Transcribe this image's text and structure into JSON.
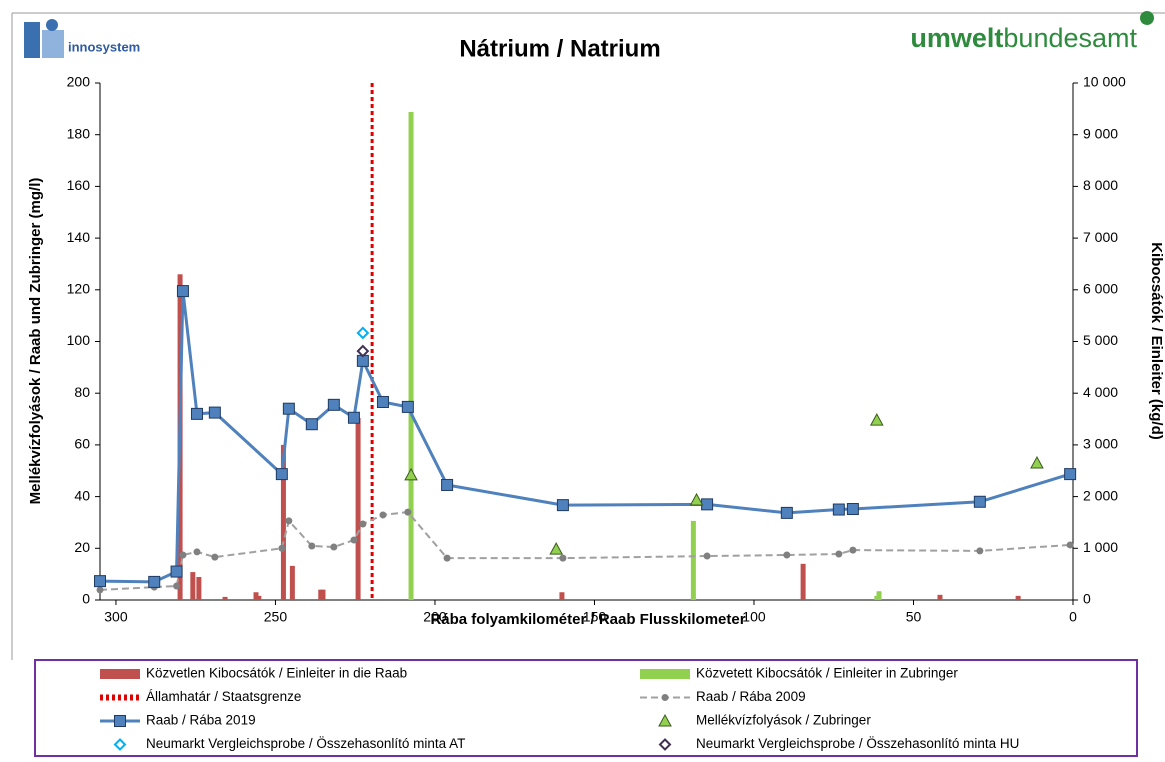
{
  "header": {
    "left_logo": "innosystem",
    "right_logo_bold": "umwelt",
    "right_logo_regular": "bundesamt"
  },
  "chart_data": {
    "type": "combo",
    "title": "Nátrium / Natrium",
    "x_label": "Rába folyamkilométer / Raab Flusskilometer",
    "y_label": "Mellékvízfolyások / Raab und Zubringer (mg/l)",
    "y2_label": "Kibocsátók / Einleiter (kg/d)",
    "xlim": [
      305,
      0
    ],
    "xticks": [
      300,
      250,
      200,
      150,
      100,
      50,
      0
    ],
    "ylim": [
      0,
      200
    ],
    "yticks": [
      0,
      20,
      40,
      60,
      80,
      100,
      120,
      140,
      160,
      180,
      200
    ],
    "y2lim": [
      0,
      10000
    ],
    "y2ticks": [
      0,
      {
        "value": 1000,
        "label": "1 000"
      },
      {
        "value": 2000,
        "label": "2 000"
      },
      {
        "value": 3000,
        "label": "3 000"
      },
      {
        "value": 4000,
        "label": "4 000"
      },
      {
        "value": 5000,
        "label": "5 000"
      },
      {
        "value": 6000,
        "label": "6 000"
      },
      {
        "value": 7000,
        "label": "7 000"
      },
      {
        "value": 8000,
        "label": "8 000"
      },
      {
        "value": 9000,
        "label": "9 000"
      },
      {
        "value": 10000,
        "label": "10 000"
      }
    ],
    "series": [
      {
        "name": "Közvetlen Kibocsátók / Einleiter in die Raab",
        "type": "bar",
        "axis": "y2",
        "color": "#c0504d",
        "x": [
          279.9,
          275.9,
          274,
          265.8,
          256.1,
          255.2,
          247.5,
          244.7,
          235.8,
          235.1,
          224.1,
          160.2,
          84.6,
          41.7,
          17.2
        ],
        "values": [
          6300,
          540,
          445,
          60,
          150,
          80,
          3000,
          660,
          200,
          200,
          3520,
          150,
          700,
          100,
          80
        ]
      },
      {
        "name": "Közvetett Kibocsátók / Einleiter in Zubringer",
        "type": "bar",
        "axis": "y2",
        "color": "#92d050",
        "x": [
          207.5,
          119,
          61.5,
          60.8
        ],
        "values": [
          9440,
          1530,
          80,
          170
        ]
      },
      {
        "name": "Államhatár / Staatsgrenze",
        "type": "vline",
        "color": "#e00000",
        "x": [
          219.7
        ]
      },
      {
        "name": "Raab / Rába 2009",
        "type": "line",
        "dashed": true,
        "marker": "circle",
        "color": "#a0a0a0",
        "x": [
          305,
          288,
          281,
          279,
          274.6,
          269,
          248,
          245.8,
          238.6,
          231.7,
          225.4,
          222.6,
          216.3,
          208.5,
          196.2,
          159.9,
          114.7,
          89.7,
          73.4,
          69,
          29.2,
          0.9
        ],
        "values": [
          3.9,
          5,
          5.4,
          17.4,
          18.6,
          16.6,
          20,
          30.6,
          20.9,
          20.5,
          23.2,
          29.4,
          32.9,
          34,
          16.2,
          16.2,
          17,
          17.4,
          17.8,
          19.3,
          19,
          21.3
        ]
      },
      {
        "name": "Raab / Rába 2019",
        "type": "line",
        "dashed": false,
        "marker": "square",
        "color": "#4f81bd",
        "x": [
          305,
          288,
          281,
          279,
          274.6,
          269,
          248,
          245.8,
          238.6,
          231.7,
          225.4,
          222.6,
          216.3,
          208.5,
          196.2,
          159.9,
          114.7,
          89.7,
          73.4,
          69,
          29.2,
          0.9
        ],
        "values": [
          7.3,
          7,
          11,
          119.5,
          72,
          72.5,
          48.7,
          74,
          68,
          75.5,
          70.5,
          92.5,
          76.6,
          74.7,
          44.5,
          36.7,
          37,
          33.7,
          35,
          35.2,
          38,
          48.7
        ]
      },
      {
        "name": "Mellékvízfolyások / Zubringer",
        "type": "scatter",
        "marker": "triangle",
        "color": "#92d050",
        "x": [
          207.5,
          162,
          118,
          61.5,
          11.3
        ],
        "values": [
          48.4,
          19.7,
          38.7,
          69.6,
          53
        ]
      },
      {
        "name": "Neumarkt Vergleichsprobe / Összehasonlító minta AT",
        "type": "scatter",
        "marker": "diamond",
        "color": "#00b0f0",
        "x": [
          222.6
        ],
        "values": [
          103.3
        ]
      },
      {
        "name": "Neumarkt Vergleichsprobe / Összehasonlító minta HU",
        "type": "scatter",
        "marker": "diamond",
        "color": "#403152",
        "x": [
          222.6
        ],
        "values": [
          96.3
        ]
      }
    ]
  }
}
